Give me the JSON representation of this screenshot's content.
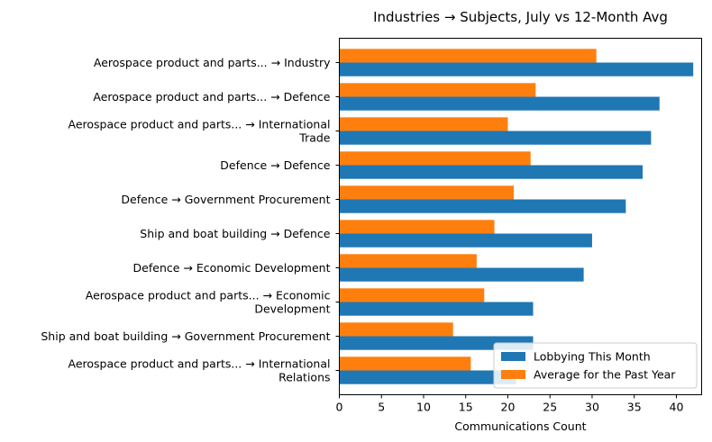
{
  "chart_data": {
    "type": "bar",
    "orientation": "horizontal",
    "title": "Industries → Subjects, July vs 12-Month Avg",
    "xlabel": "Communications Count",
    "ylabel": "",
    "xlim": [
      0,
      43
    ],
    "xticks": [
      0,
      5,
      10,
      15,
      20,
      25,
      30,
      35,
      40
    ],
    "legend_position": "lower-right",
    "categories": [
      [
        "Aerospace product and parts... → Industry"
      ],
      [
        "Aerospace product and parts... → Defence"
      ],
      [
        "Aerospace product and parts... → International",
        "Trade"
      ],
      [
        "Defence → Defence"
      ],
      [
        "Defence → Government Procurement"
      ],
      [
        "Ship and boat building → Defence"
      ],
      [
        "Defence → Economic Development"
      ],
      [
        "Aerospace product and parts... → Economic",
        "Development"
      ],
      [
        "Ship and boat building → Government Procurement"
      ],
      [
        "Aerospace product and parts... → International",
        "Relations"
      ]
    ],
    "series": [
      {
        "name": "Lobbying This Month",
        "color": "#1f77b4",
        "values": [
          42,
          38,
          37,
          36,
          34,
          30,
          29,
          23,
          23,
          21
        ]
      },
      {
        "name": "Average for the Past Year",
        "color": "#ff7f0e",
        "values": [
          30.5,
          23.3,
          20,
          22.7,
          20.7,
          18.4,
          16.3,
          17.2,
          13.5,
          15.6
        ]
      }
    ]
  }
}
